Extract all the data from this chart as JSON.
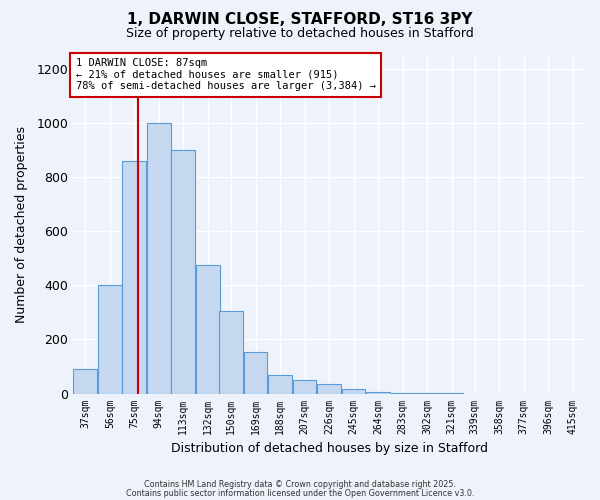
{
  "title": "1, DARWIN CLOSE, STAFFORD, ST16 3PY",
  "subtitle": "Size of property relative to detached houses in Stafford",
  "xlabel": "Distribution of detached houses by size in Stafford",
  "ylabel": "Number of detached properties",
  "bin_labels": [
    "37sqm",
    "56sqm",
    "75sqm",
    "94sqm",
    "113sqm",
    "132sqm",
    "150sqm",
    "169sqm",
    "188sqm",
    "207sqm",
    "226sqm",
    "245sqm",
    "264sqm",
    "283sqm",
    "302sqm",
    "321sqm",
    "339sqm",
    "358sqm",
    "377sqm",
    "396sqm",
    "415sqm"
  ],
  "bar_values": [
    90,
    400,
    860,
    1000,
    900,
    475,
    305,
    155,
    70,
    50,
    35,
    15,
    5,
    2,
    1,
    1,
    0,
    0,
    0,
    0,
    0
  ],
  "bar_color": "#c5d8f0",
  "bar_edge_color": "#5b9bd5",
  "property_line_x": 87,
  "bin_edges": [
    37,
    56,
    75,
    94,
    113,
    132,
    150,
    169,
    188,
    207,
    226,
    245,
    264,
    283,
    302,
    321,
    339,
    358,
    377,
    396,
    415
  ],
  "annotation_title": "1 DARWIN CLOSE: 87sqm",
  "annotation_line1": "← 21% of detached houses are smaller (915)",
  "annotation_line2": "78% of semi-detached houses are larger (3,384) →",
  "annotation_box_color": "#ffffff",
  "annotation_box_edge": "#cc0000",
  "line_color": "#cc0000",
  "footer1": "Contains HM Land Registry data © Crown copyright and database right 2025.",
  "footer2": "Contains public sector information licensed under the Open Government Licence v3.0.",
  "ylim": [
    0,
    1250
  ],
  "background_color": "#eef2fa"
}
